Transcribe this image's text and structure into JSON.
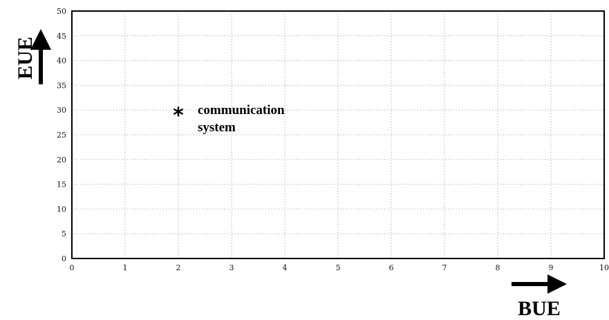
{
  "chart_data": {
    "type": "scatter",
    "xlabel": "BUE",
    "ylabel": "EUE",
    "xlim": [
      0,
      10
    ],
    "ylim": [
      0,
      50
    ],
    "xticks": [
      0,
      1,
      2,
      3,
      4,
      5,
      6,
      7,
      8,
      9,
      10
    ],
    "yticks": [
      0,
      5,
      10,
      15,
      20,
      25,
      30,
      35,
      40,
      45,
      50
    ],
    "grid": true,
    "points": [
      {
        "x": 2,
        "y": 30,
        "marker": "*",
        "label_lines": [
          "communication",
          "system"
        ]
      }
    ]
  }
}
